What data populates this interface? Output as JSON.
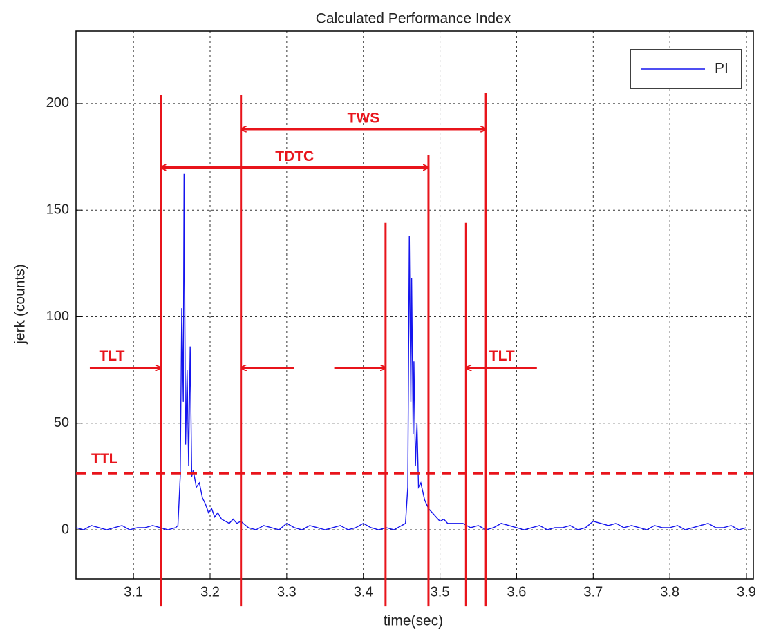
{
  "chart_data": {
    "type": "line",
    "title": "Calculated Performance Index",
    "x_label": "time(sec)",
    "y_label": "jerk (counts)",
    "xlim": [
      3.025,
      3.909
    ],
    "ylim": [
      -23,
      234
    ],
    "xticks": [
      3.1,
      3.2,
      3.3,
      3.4,
      3.5,
      3.6,
      3.7,
      3.8,
      3.9
    ],
    "yticks": [
      0,
      50,
      100,
      150,
      200
    ],
    "grid": true,
    "legend": "upper right",
    "x": [
      3.025,
      3.035,
      3.045,
      3.055,
      3.065,
      3.075,
      3.085,
      3.095,
      3.105,
      3.115,
      3.125,
      3.135,
      3.145,
      3.155,
      3.158,
      3.161,
      3.163,
      3.165,
      3.166,
      3.168,
      3.17,
      3.172,
      3.174,
      3.176,
      3.178,
      3.182,
      3.186,
      3.19,
      3.194,
      3.198,
      3.202,
      3.206,
      3.21,
      3.215,
      3.22,
      3.225,
      3.23,
      3.235,
      3.24,
      3.25,
      3.26,
      3.27,
      3.28,
      3.29,
      3.3,
      3.31,
      3.32,
      3.33,
      3.34,
      3.35,
      3.36,
      3.37,
      3.38,
      3.39,
      3.4,
      3.41,
      3.42,
      3.43,
      3.44,
      3.45,
      3.455,
      3.458,
      3.46,
      3.462,
      3.463,
      3.465,
      3.466,
      3.468,
      3.47,
      3.472,
      3.475,
      3.48,
      3.485,
      3.49,
      3.495,
      3.5,
      3.505,
      3.51,
      3.52,
      3.53,
      3.54,
      3.55,
      3.56,
      3.57,
      3.58,
      3.59,
      3.6,
      3.61,
      3.62,
      3.63,
      3.64,
      3.65,
      3.66,
      3.67,
      3.68,
      3.69,
      3.7,
      3.71,
      3.72,
      3.73,
      3.74,
      3.75,
      3.76,
      3.77,
      3.78,
      3.79,
      3.8,
      3.81,
      3.82,
      3.83,
      3.84,
      3.85,
      3.86,
      3.87,
      3.88,
      3.89,
      3.9
    ],
    "series": [
      {
        "name": "PI",
        "color": "#1515ee",
        "values": [
          1,
          0,
          2,
          1,
          0,
          1,
          2,
          0,
          1,
          1,
          2,
          1,
          0,
          1,
          2,
          25,
          104,
          60,
          167,
          40,
          75,
          30,
          86,
          25,
          28,
          20,
          22,
          15,
          12,
          8,
          10,
          6,
          8,
          5,
          4,
          3,
          5,
          3,
          4,
          1,
          0,
          2,
          1,
          0,
          3,
          1,
          0,
          2,
          1,
          0,
          1,
          2,
          0,
          1,
          3,
          1,
          0,
          1,
          0,
          2,
          3,
          20,
          138,
          60,
          118,
          45,
          79,
          30,
          50,
          20,
          22,
          14,
          10,
          8,
          6,
          4,
          5,
          3,
          3,
          3,
          1,
          2,
          0,
          1,
          3,
          2,
          1,
          0,
          1,
          2,
          0,
          1,
          1,
          2,
          0,
          1,
          4,
          3,
          2,
          3,
          1,
          2,
          1,
          0,
          2,
          1,
          1,
          2,
          0,
          1,
          2,
          3,
          1,
          1,
          2,
          0,
          1
        ]
      }
    ],
    "vlines": [
      {
        "x": 3.1355,
        "y": [
          -36,
          204
        ]
      },
      {
        "x": 3.2403,
        "y": [
          -36,
          204
        ]
      },
      {
        "x": 3.429,
        "y": [
          -36,
          144
        ]
      },
      {
        "x": 3.485,
        "y": [
          -36,
          176
        ]
      },
      {
        "x": 3.534,
        "y": [
          -36,
          144
        ]
      },
      {
        "x": 3.56,
        "y": [
          -36,
          205
        ]
      }
    ],
    "threshold": {
      "label": "TTL",
      "y": 26.5
    },
    "spans": [
      {
        "label": "TWS",
        "x": [
          3.2403,
          3.56
        ],
        "y": 188
      },
      {
        "label": "TDTC",
        "x": [
          3.1355,
          3.485
        ],
        "y": 170
      }
    ],
    "arrows": [
      {
        "label": "TLT",
        "from": 3.043,
        "to": 3.1355,
        "y": 76
      },
      {
        "from": 3.3095,
        "to": 3.2403,
        "y": 76
      },
      {
        "from": 3.362,
        "to": 3.429,
        "y": 76
      },
      {
        "label": "TLT",
        "from": 3.6265,
        "to": 3.534,
        "y": 76
      }
    ]
  }
}
